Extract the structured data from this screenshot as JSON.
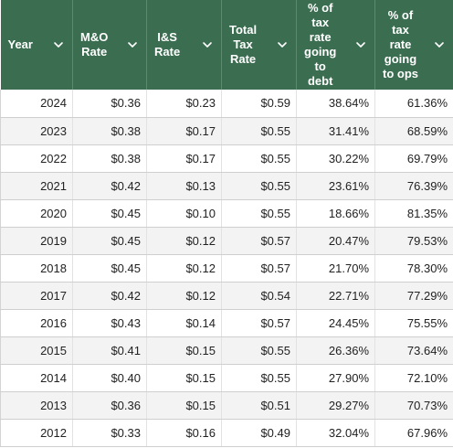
{
  "colors": {
    "header_bg": "#3b6e50",
    "header_text": "#ffffff",
    "stripe": "#f3f3f3"
  },
  "columns": [
    {
      "lines": [
        "Year"
      ],
      "icon": "chevron-down-icon"
    },
    {
      "lines": [
        "M&O",
        "Rate"
      ],
      "icon": "chevron-down-icon"
    },
    {
      "lines": [
        "I&S",
        "Rate"
      ],
      "icon": "chevron-down-icon"
    },
    {
      "lines": [
        "Total",
        "Tax",
        "Rate"
      ],
      "icon": "chevron-down-icon"
    },
    {
      "lines": [
        "% of",
        "tax",
        "rate",
        "going",
        "to",
        "debt"
      ],
      "icon": "chevron-down-icon"
    },
    {
      "lines": [
        "% of",
        "tax",
        "rate",
        "going",
        "to ops"
      ],
      "icon": "chevron-down-icon"
    }
  ],
  "rows": [
    [
      "2024",
      "$0.36",
      "$0.23",
      "$0.59",
      "38.64%",
      "61.36%"
    ],
    [
      "2023",
      "$0.38",
      "$0.17",
      "$0.55",
      "31.41%",
      "68.59%"
    ],
    [
      "2022",
      "$0.38",
      "$0.17",
      "$0.55",
      "30.22%",
      "69.79%"
    ],
    [
      "2021",
      "$0.42",
      "$0.13",
      "$0.55",
      "23.61%",
      "76.39%"
    ],
    [
      "2020",
      "$0.45",
      "$0.10",
      "$0.55",
      "18.66%",
      "81.35%"
    ],
    [
      "2019",
      "$0.45",
      "$0.12",
      "$0.57",
      "20.47%",
      "79.53%"
    ],
    [
      "2018",
      "$0.45",
      "$0.12",
      "$0.57",
      "21.70%",
      "78.30%"
    ],
    [
      "2017",
      "$0.42",
      "$0.12",
      "$0.54",
      "22.71%",
      "77.29%"
    ],
    [
      "2016",
      "$0.43",
      "$0.14",
      "$0.57",
      "24.45%",
      "75.55%"
    ],
    [
      "2015",
      "$0.41",
      "$0.15",
      "$0.55",
      "26.36%",
      "73.64%"
    ],
    [
      "2014",
      "$0.40",
      "$0.15",
      "$0.55",
      "27.90%",
      "72.10%"
    ],
    [
      "2013",
      "$0.36",
      "$0.15",
      "$0.51",
      "29.27%",
      "70.73%"
    ],
    [
      "2012",
      "$0.33",
      "$0.16",
      "$0.49",
      "32.04%",
      "67.96%"
    ]
  ]
}
